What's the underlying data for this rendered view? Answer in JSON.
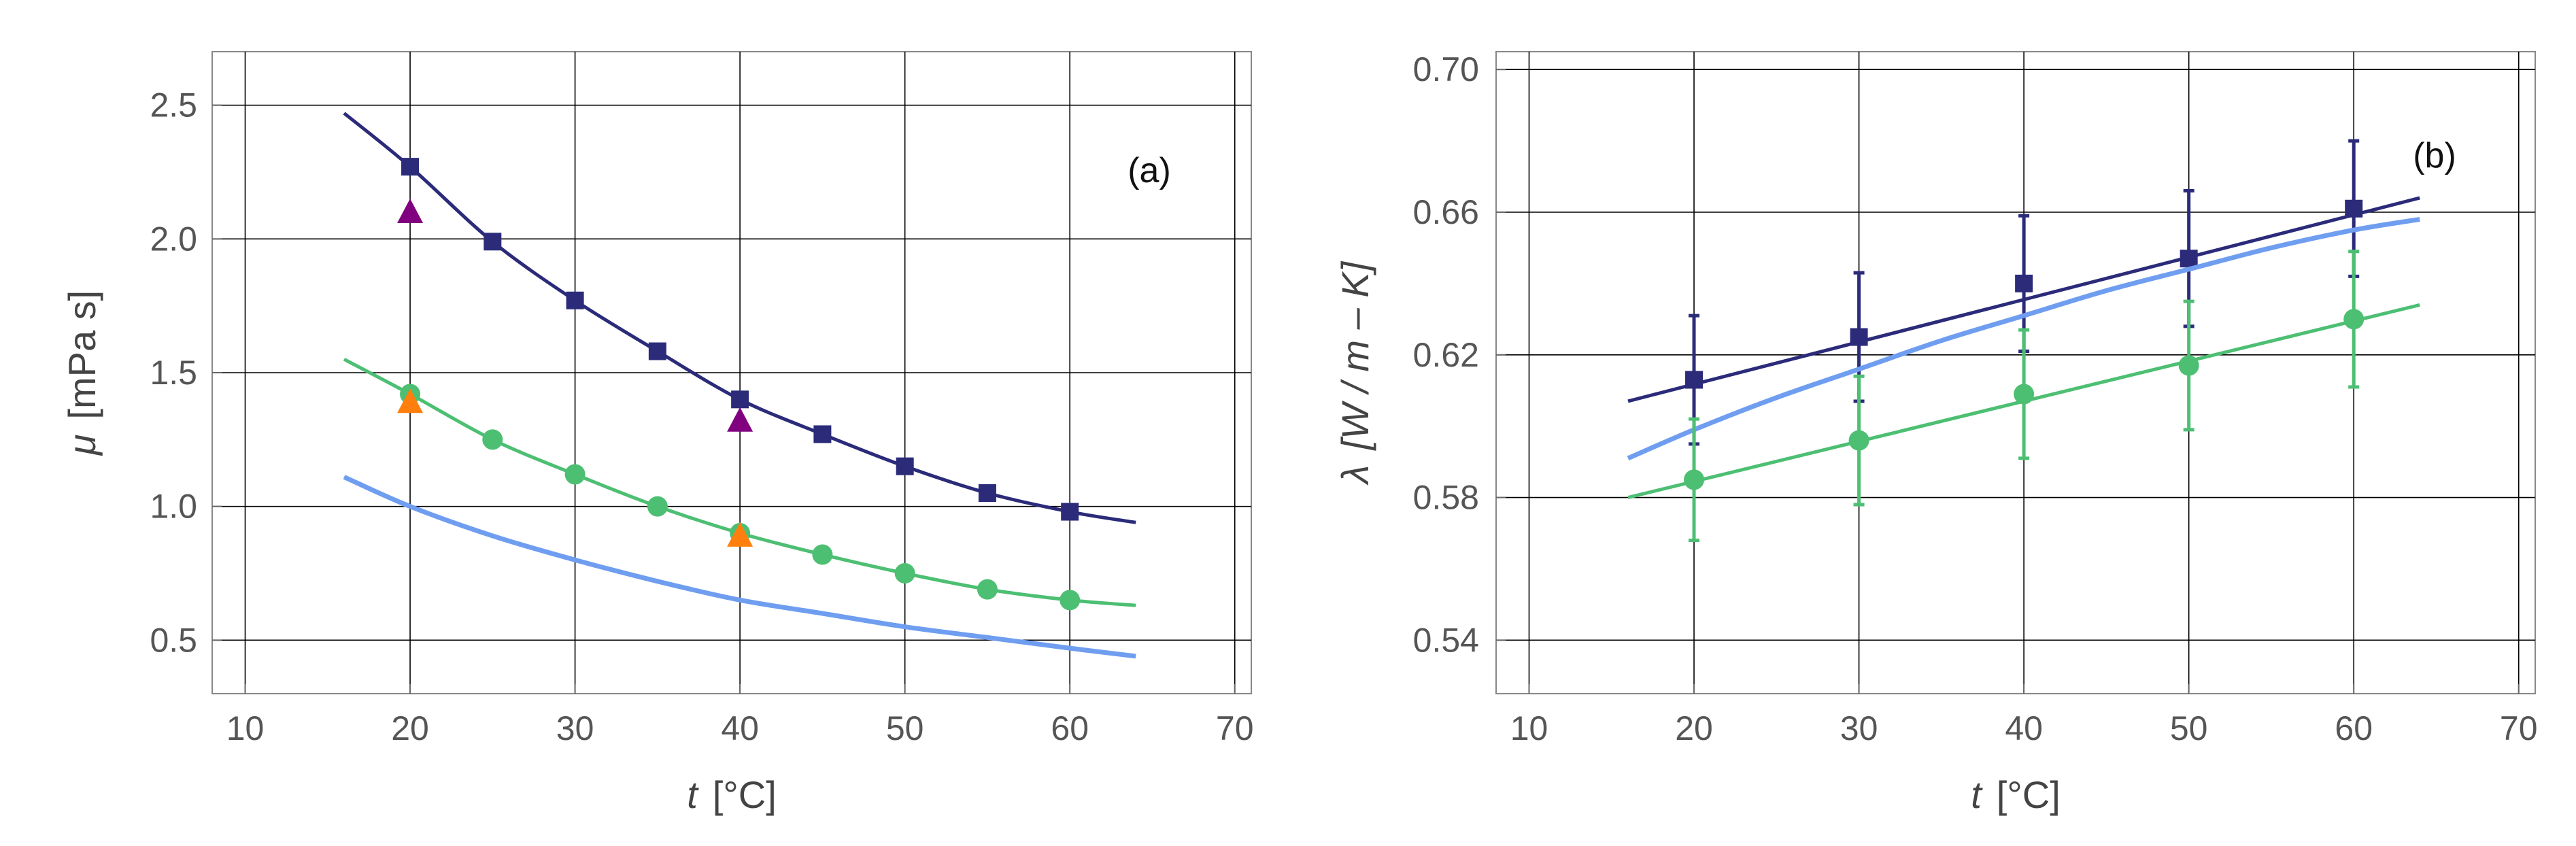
{
  "colors": {
    "dark_blue": "#2b2b7a",
    "light_blue": "#6f9ef0",
    "green": "#4dbf73",
    "purple": "#800080",
    "orange": "#ff7f0e",
    "grid": "#000000",
    "frame": "#888888"
  },
  "chart_data": [
    {
      "type": "line",
      "panel": "(a)",
      "xlabel_var": "t",
      "xlabel_unit": "[°C]",
      "ylabel_var": "μ",
      "ylabel_unit": "[mPa s]",
      "xlim": [
        8,
        71
      ],
      "ylim": [
        0.3,
        2.7
      ],
      "xticks": [
        10,
        20,
        30,
        40,
        50,
        60,
        70
      ],
      "xtick_labels": [
        "10",
        "20",
        "30",
        "40",
        "50",
        "60",
        "70"
      ],
      "yticks": [
        0.5,
        1.0,
        1.5,
        2.0,
        2.5
      ],
      "ytick_labels": [
        "0.5",
        "1.0",
        "1.5",
        "2.0",
        "2.5"
      ],
      "grid": true,
      "series": [
        {
          "name": "dark blue curve",
          "color": "#2b2b7a",
          "marker": "square",
          "curve_x": [
            16,
            20,
            25,
            30,
            35,
            40,
            45,
            50,
            55,
            60,
            64
          ],
          "curve_y": [
            2.47,
            2.27,
            1.99,
            1.77,
            1.58,
            1.4,
            1.27,
            1.15,
            1.05,
            0.98,
            0.94
          ],
          "points_x": [
            20,
            25,
            30,
            35,
            40,
            45,
            50,
            55,
            60
          ],
          "points_y": [
            2.27,
            1.99,
            1.77,
            1.58,
            1.4,
            1.27,
            1.15,
            1.05,
            0.98
          ]
        },
        {
          "name": "green curve",
          "color": "#4dbf73",
          "marker": "circle",
          "curve_x": [
            16,
            20,
            25,
            30,
            35,
            40,
            45,
            50,
            55,
            60,
            64
          ],
          "curve_y": [
            1.55,
            1.42,
            1.25,
            1.12,
            1.0,
            0.9,
            0.82,
            0.75,
            0.69,
            0.65,
            0.63
          ],
          "points_x": [
            20,
            25,
            30,
            35,
            40,
            45,
            50,
            55,
            60
          ],
          "points_y": [
            1.42,
            1.25,
            1.12,
            1.0,
            0.9,
            0.82,
            0.75,
            0.69,
            0.65
          ]
        },
        {
          "name": "light blue curve",
          "color": "#6f9ef0",
          "marker": "none",
          "curve_x": [
            16,
            20,
            25,
            30,
            35,
            40,
            45,
            50,
            55,
            60,
            64
          ],
          "curve_y": [
            1.11,
            1.0,
            0.89,
            0.8,
            0.72,
            0.65,
            0.6,
            0.55,
            0.51,
            0.47,
            0.44
          ],
          "points_x": [],
          "points_y": []
        },
        {
          "name": "purple triangles",
          "color": "#800080",
          "marker": "triangle",
          "curve_x": [],
          "curve_y": [],
          "points_x": [
            20,
            40
          ],
          "points_y": [
            2.1,
            1.32
          ]
        },
        {
          "name": "orange triangles",
          "color": "#ff7f0e",
          "marker": "triangle",
          "curve_x": [],
          "curve_y": [],
          "points_x": [
            20,
            40
          ],
          "points_y": [
            1.39,
            0.89
          ]
        }
      ]
    },
    {
      "type": "line",
      "panel": "(b)",
      "xlabel_var": "t",
      "xlabel_unit": "[°C]",
      "ylabel_var": "λ",
      "ylabel_unit": "[W / m – K]",
      "xlim": [
        8,
        71
      ],
      "ylim": [
        0.525,
        0.705
      ],
      "xticks": [
        10,
        20,
        30,
        40,
        50,
        60,
        70
      ],
      "xtick_labels": [
        "10",
        "20",
        "30",
        "40",
        "50",
        "60",
        "70"
      ],
      "yticks": [
        0.54,
        0.58,
        0.62,
        0.66,
        0.7
      ],
      "ytick_labels": [
        "0.54",
        "0.58",
        "0.62",
        "0.66",
        "0.70"
      ],
      "grid": true,
      "series": [
        {
          "name": "dark blue fit",
          "color": "#2b2b7a",
          "marker": "square",
          "curve_x": [
            16,
            64
          ],
          "curve_y": [
            0.607,
            0.664
          ],
          "points_x": [
            20,
            30,
            40,
            50,
            60
          ],
          "points_y": [
            0.613,
            0.625,
            0.64,
            0.647,
            0.661
          ],
          "errors": [
            0.018,
            0.018,
            0.019,
            0.019,
            0.019
          ]
        },
        {
          "name": "light blue curve",
          "color": "#6f9ef0",
          "marker": "none",
          "curve_x": [
            16,
            20,
            25,
            30,
            35,
            40,
            45,
            50,
            55,
            60,
            64
          ],
          "curve_y": [
            0.591,
            0.599,
            0.608,
            0.616,
            0.624,
            0.631,
            0.638,
            0.644,
            0.65,
            0.655,
            0.658
          ],
          "points_x": [],
          "points_y": [],
          "errors": []
        },
        {
          "name": "green fit",
          "color": "#4dbf73",
          "marker": "circle",
          "curve_x": [
            16,
            64
          ],
          "curve_y": [
            0.58,
            0.634
          ],
          "points_x": [
            20,
            30,
            40,
            50,
            60
          ],
          "points_y": [
            0.585,
            0.596,
            0.609,
            0.617,
            0.63
          ],
          "errors": [
            0.017,
            0.018,
            0.018,
            0.018,
            0.019
          ]
        }
      ]
    }
  ]
}
